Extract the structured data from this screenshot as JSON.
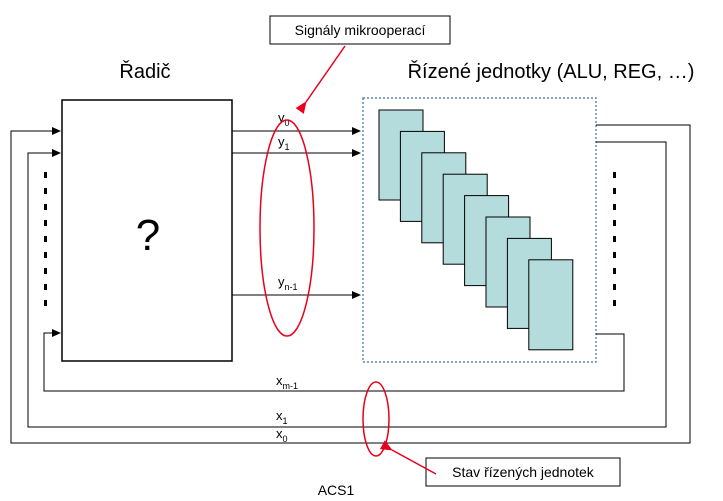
{
  "labels": {
    "controller": "Řadič",
    "controlled_units": "Řízené jednotky (ALU, REG, …)",
    "unknown_mark": "?",
    "footer": "ACS1"
  },
  "callouts": {
    "microops": "Signály mikrooperací",
    "unit_state": "Stav řízených jednotek"
  },
  "signals": {
    "y0": {
      "base": "y",
      "sub": "0"
    },
    "y1": {
      "base": "y",
      "sub": "1"
    },
    "yn1": {
      "base": "y",
      "sub": "n-1"
    },
    "xm1": {
      "base": "x",
      "sub": "m-1"
    },
    "x1": {
      "base": "x",
      "sub": "1"
    },
    "x0": {
      "base": "x",
      "sub": "0"
    }
  },
  "colors": {
    "callout_ellipse": "#e8001c",
    "unit_fill": "#b4dcdc",
    "unit_border": "#3a6ea5",
    "line": "#000000"
  },
  "stack_count": 8
}
